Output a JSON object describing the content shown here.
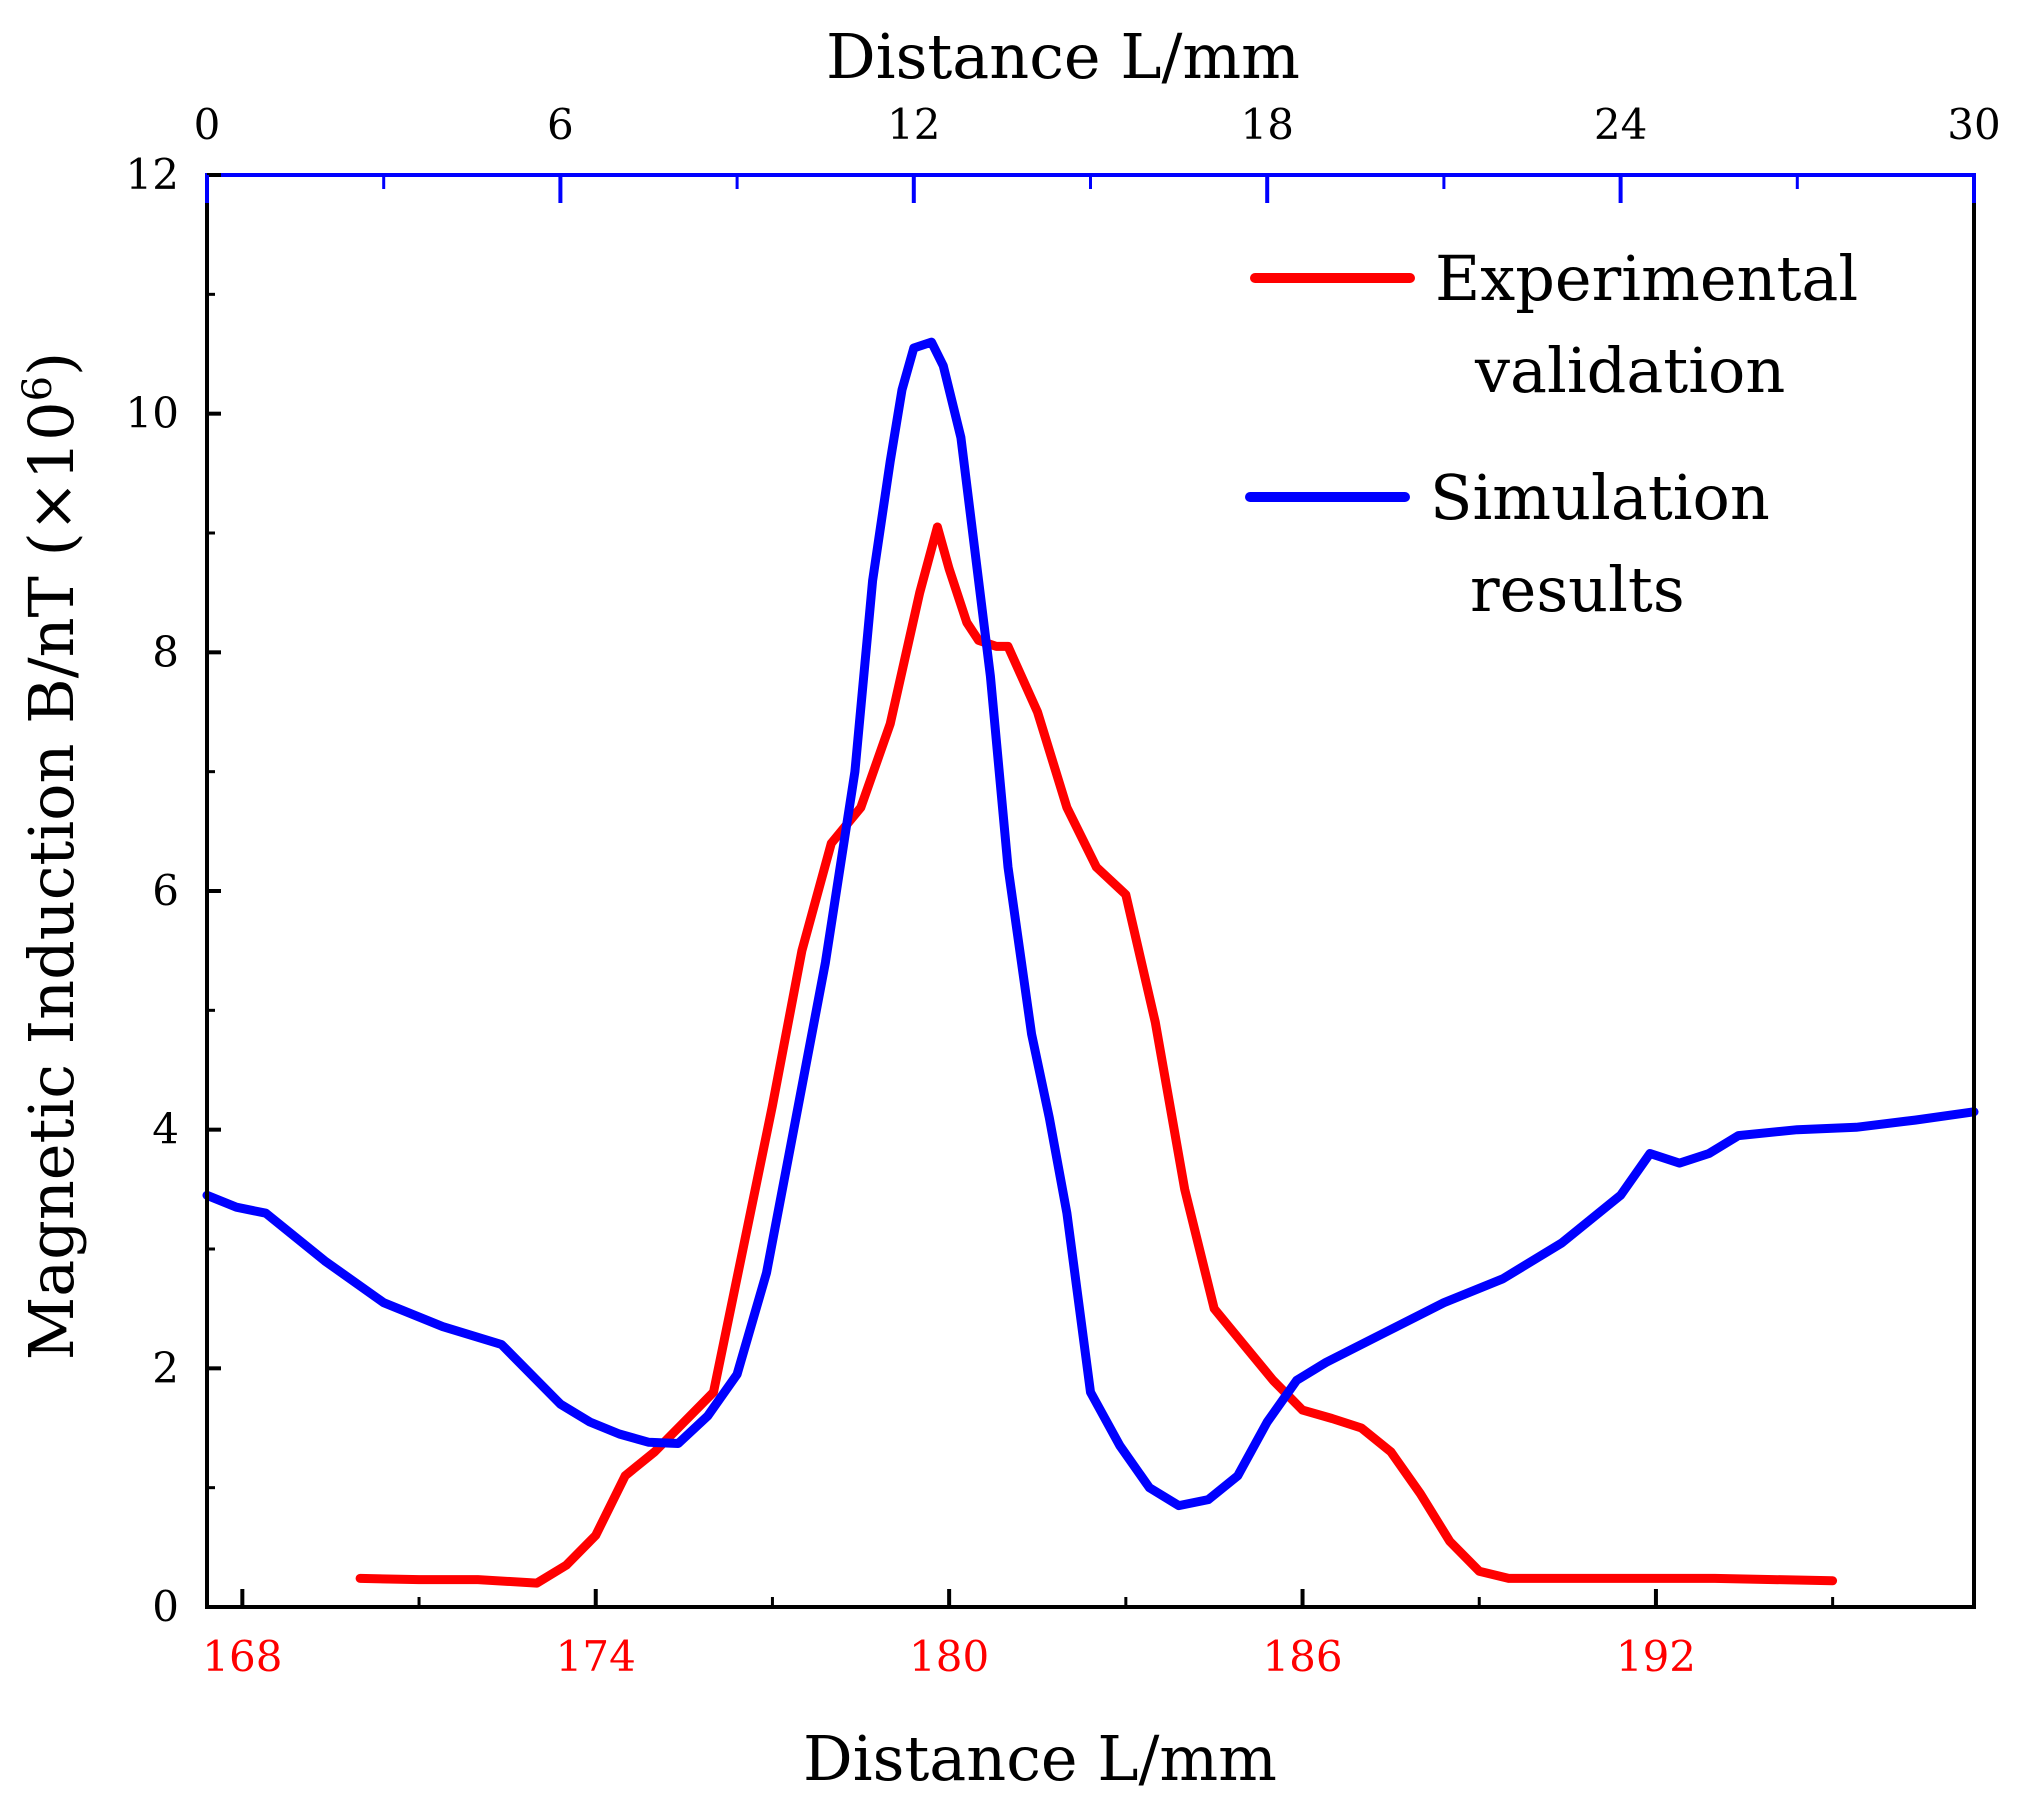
{
  "chart_data": {
    "type": "line",
    "title": "",
    "ylabel": "Magnetic Induction B/nT (×10",
    "ylabel_exponent": "6",
    "ylabel_close": ")",
    "ylim": [
      0,
      12
    ],
    "y_ticks": [
      0,
      2,
      4,
      6,
      8,
      10,
      12
    ],
    "bottom_axis": {
      "label": "Distance L/mm",
      "color": "#ff0000",
      "range": [
        167.4,
        197.4
      ],
      "ticks": [
        168,
        174,
        180,
        186,
        192
      ]
    },
    "top_axis": {
      "label": "Distance L/mm",
      "color": "#0000ff",
      "range": [
        0,
        30
      ],
      "ticks": [
        0,
        6,
        12,
        18,
        24,
        30
      ]
    },
    "legend_position": "top-right",
    "series": [
      {
        "name": "Experimental validation",
        "name_line1": "Experimental",
        "name_line2": "validation",
        "color": "#ff0000",
        "axis": "bottom",
        "x": [
          170.0,
          171.0,
          172.0,
          173.0,
          173.5,
          174.0,
          174.5,
          175.0,
          175.5,
          176.0,
          176.5,
          177.0,
          177.5,
          178.0,
          178.5,
          179.0,
          179.5,
          179.8,
          180.0,
          180.3,
          180.5,
          180.8,
          181.0,
          181.5,
          182.0,
          182.5,
          183.0,
          183.5,
          184.0,
          184.5,
          185.0,
          185.5,
          186.0,
          186.5,
          187.0,
          187.5,
          188.0,
          188.5,
          189.0,
          189.5,
          190.0,
          191.0,
          192.0,
          193.0,
          194.0,
          195.0
        ],
        "values": [
          0.24,
          0.23,
          0.23,
          0.2,
          0.35,
          0.6,
          1.1,
          1.3,
          1.55,
          1.8,
          3.0,
          4.2,
          5.5,
          6.4,
          6.7,
          7.4,
          8.5,
          9.05,
          8.7,
          8.25,
          8.1,
          8.05,
          8.05,
          7.5,
          6.7,
          6.2,
          5.97,
          4.9,
          3.5,
          2.5,
          2.2,
          1.9,
          1.65,
          1.58,
          1.5,
          1.3,
          0.95,
          0.55,
          0.3,
          0.24,
          0.24,
          0.24,
          0.24,
          0.24,
          0.23,
          0.22
        ]
      },
      {
        "name": "Simulation results",
        "name_line1": "Simulation",
        "name_line2": "results",
        "color": "#0000ff",
        "axis": "top",
        "x": [
          0.0,
          0.5,
          1.0,
          2.0,
          3.0,
          4.0,
          5.0,
          6.0,
          6.5,
          7.0,
          7.5,
          8.0,
          8.5,
          9.0,
          9.5,
          10.0,
          10.5,
          11.0,
          11.3,
          11.6,
          11.8,
          12.0,
          12.3,
          12.5,
          12.8,
          13.0,
          13.3,
          13.6,
          14.0,
          14.3,
          14.6,
          15.0,
          15.5,
          16.0,
          16.5,
          17.0,
          17.5,
          18.0,
          18.5,
          19.0,
          20.0,
          21.0,
          22.0,
          23.0,
          24.0,
          24.5,
          25.0,
          25.5,
          26.0,
          27.0,
          28.0,
          29.0,
          30.0
        ],
        "values": [
          3.45,
          3.35,
          3.3,
          2.9,
          2.55,
          2.35,
          2.2,
          1.7,
          1.55,
          1.45,
          1.38,
          1.37,
          1.6,
          1.95,
          2.8,
          4.1,
          5.4,
          7.0,
          8.6,
          9.6,
          10.2,
          10.55,
          10.6,
          10.4,
          9.8,
          9.0,
          7.8,
          6.2,
          4.8,
          4.1,
          3.3,
          1.8,
          1.35,
          1.0,
          0.85,
          0.9,
          1.1,
          1.55,
          1.9,
          2.05,
          2.3,
          2.55,
          2.75,
          3.05,
          3.45,
          3.8,
          3.72,
          3.8,
          3.95,
          4.0,
          4.02,
          4.08,
          4.15
        ]
      }
    ]
  }
}
